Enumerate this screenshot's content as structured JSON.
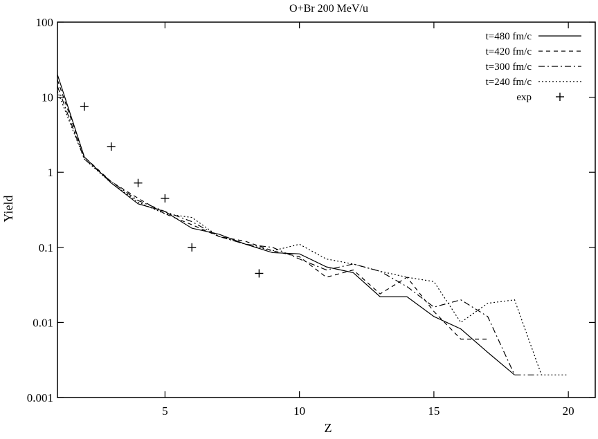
{
  "chart_data": {
    "type": "line",
    "title": "O+Br 200 MeV/u",
    "xlabel": "Z",
    "ylabel": "Yield",
    "xlim": [
      1,
      21
    ],
    "ylim": [
      0.001,
      100
    ],
    "yscale": "log",
    "xticks": [
      5,
      10,
      15,
      20
    ],
    "yticks": [
      100,
      10,
      1,
      0.1,
      0.01,
      0.001
    ],
    "ytick_labels": [
      "100",
      "10",
      "1",
      "0.1",
      "0.01",
      "0.001"
    ],
    "grid": false,
    "legend_position": "top-right",
    "series": [
      {
        "name": "t=480 fm/c",
        "style": "solid",
        "x": [
          1,
          2,
          3,
          4,
          5,
          6,
          7,
          8,
          9,
          10,
          11,
          12,
          13,
          14,
          15,
          16,
          17,
          18
        ],
        "y": [
          20,
          1.6,
          0.72,
          0.38,
          0.3,
          0.18,
          0.15,
          0.11,
          0.085,
          0.082,
          0.055,
          0.046,
          0.022,
          0.022,
          0.012,
          0.0082,
          0.004,
          0.002
        ]
      },
      {
        "name": "t=420 fm/c",
        "style": "dashed",
        "x": [
          1,
          2,
          3,
          4,
          5,
          6,
          7,
          8,
          9,
          10,
          11,
          12,
          13,
          14,
          15,
          16,
          17
        ],
        "y": [
          17,
          1.6,
          0.75,
          0.45,
          0.28,
          0.2,
          0.14,
          0.12,
          0.09,
          0.075,
          0.04,
          0.05,
          0.024,
          0.04,
          0.014,
          0.006,
          0.006
        ]
      },
      {
        "name": "t=300 fm/c",
        "style": "dashdot",
        "x": [
          1,
          2,
          3,
          4,
          5,
          6,
          7,
          8,
          9,
          10,
          11,
          12,
          13,
          14,
          15,
          16,
          17,
          18,
          19
        ],
        "y": [
          14,
          1.5,
          0.75,
          0.42,
          0.3,
          0.22,
          0.14,
          0.11,
          0.1,
          0.07,
          0.05,
          0.06,
          0.048,
          0.03,
          0.016,
          0.02,
          0.012,
          0.002,
          0.002
        ]
      },
      {
        "name": "t=240 fm/c",
        "style": "dotted",
        "x": [
          1,
          2,
          3,
          4,
          5,
          6,
          7,
          8,
          9,
          10,
          11,
          12,
          13,
          14,
          15,
          16,
          17,
          18,
          19,
          20
        ],
        "y": [
          12,
          1.5,
          0.72,
          0.4,
          0.28,
          0.25,
          0.14,
          0.11,
          0.09,
          0.11,
          0.07,
          0.06,
          0.048,
          0.04,
          0.035,
          0.01,
          0.018,
          0.02,
          0.002,
          0.002
        ]
      },
      {
        "name": "exp",
        "style": "markers",
        "x": [
          2,
          3,
          4,
          5,
          6,
          8.5
        ],
        "y": [
          7.5,
          2.2,
          0.72,
          0.45,
          0.1,
          0.045
        ]
      }
    ]
  }
}
